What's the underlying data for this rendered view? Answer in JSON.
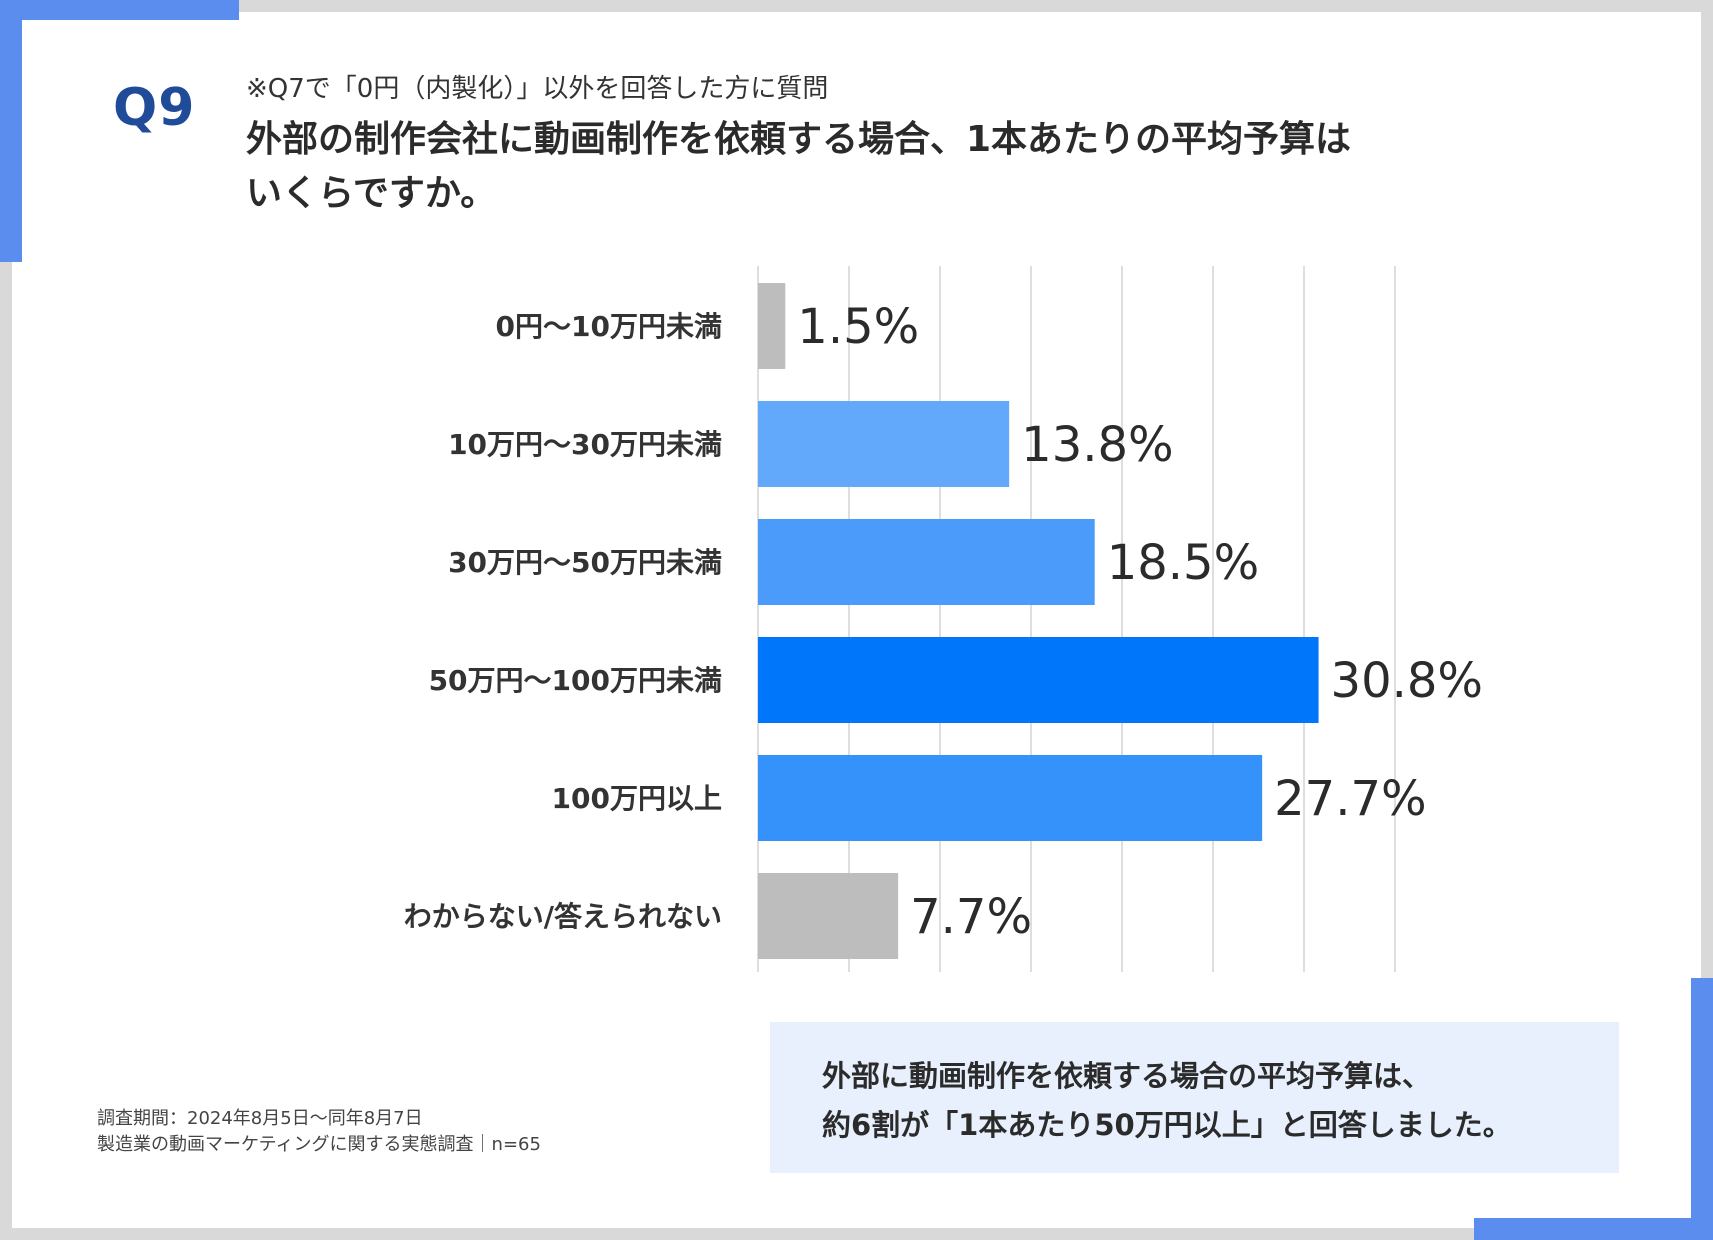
{
  "header": {
    "q_label": "Q9",
    "note": "※Q7で「0円（内製化）」以外を回答した方に質問",
    "question_line1": "外部の制作会社に動画制作を依頼する場合、1本あたりの平均予算は",
    "question_line2": "いくらですか。"
  },
  "chart_data": {
    "type": "bar",
    "orientation": "horizontal",
    "title": "外部の制作会社に動画制作を依頼する場合、1本あたりの平均予算はいくらですか。",
    "categories": [
      "0円〜10万円未満",
      "10万円〜30万円未満",
      "30万円〜50万円未満",
      "50万円〜100万円未満",
      "100万円以上",
      "わからない/答えられない"
    ],
    "values": [
      1.5,
      13.8,
      18.5,
      30.8,
      27.7,
      7.7
    ],
    "value_labels": [
      "1.5%",
      "13.8%",
      "18.5%",
      "30.8%",
      "27.7%",
      "7.7%"
    ],
    "bar_colors": [
      "#bdbdbd",
      "#62a9fb",
      "#4b9cfa",
      "#0077fb",
      "#3592fa",
      "#bdbdbd"
    ],
    "xlim": [
      0,
      35
    ],
    "gridline_step": 5,
    "grid": true,
    "xlabel": "",
    "ylabel": "",
    "unit": "%"
  },
  "footnote": {
    "period": "調査期間：2024年8月5日〜同年8月7日",
    "survey": "製造業の動画マーケティングに関する実態調査｜n=65"
  },
  "summary": {
    "line1": "外部に動画制作を依頼する場合の平均予算は、",
    "line2": "約6割が「1本あたり50万円以上」と回答しました。"
  },
  "colors": {
    "accent": "#5b8def",
    "q_label": "#1f4b99",
    "summary_bg": "#e8f0fd",
    "frame": "#d9d9d9"
  }
}
